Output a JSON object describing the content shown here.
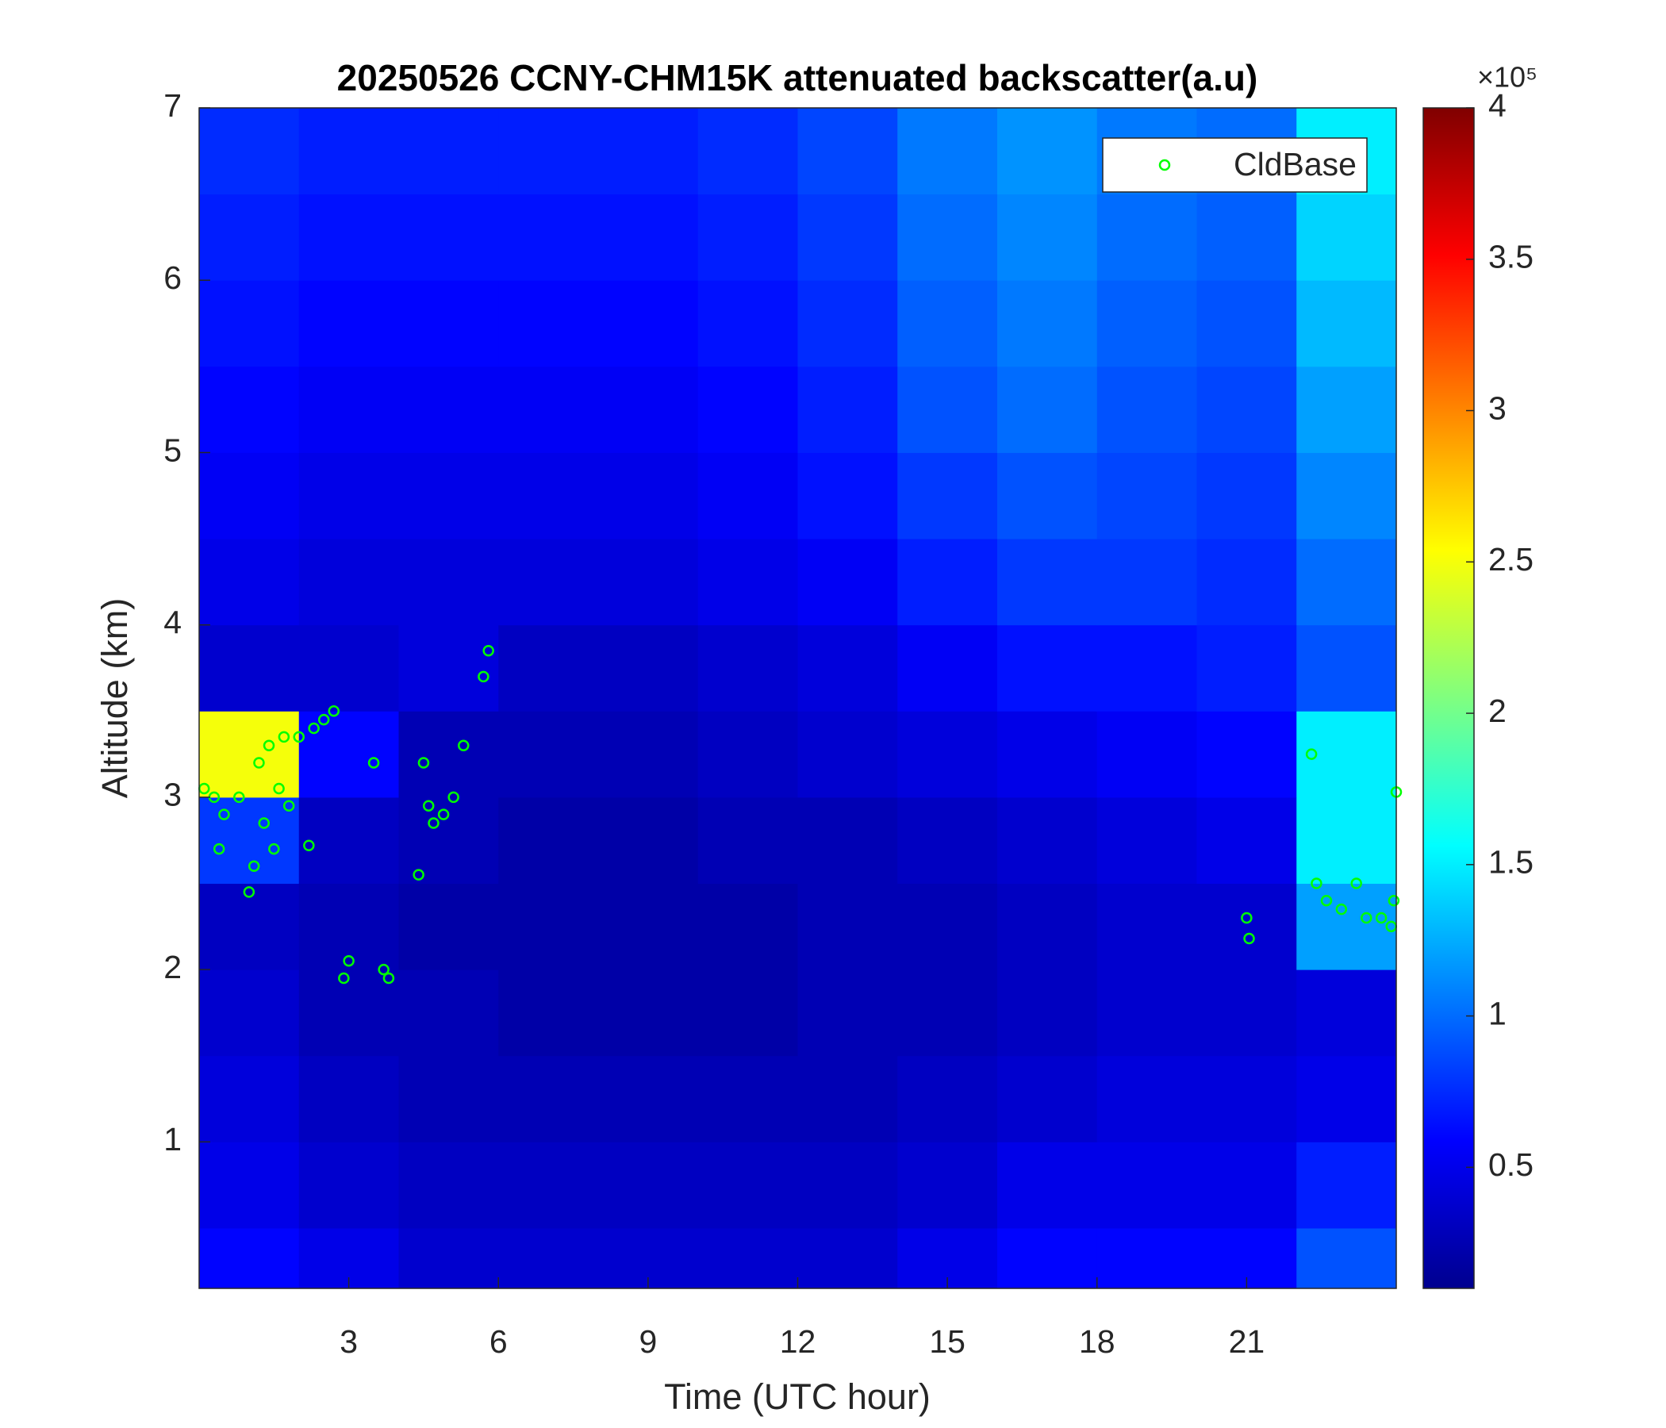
{
  "chart_data": {
    "type": "heatmap",
    "title": "20250526 CCNY-CHM15K attenuated backscatter(a.u)",
    "xlabel": "Time (UTC hour)",
    "ylabel": "Altitude (km)",
    "xlim": [
      0,
      24
    ],
    "ylim": [
      0.15,
      7
    ],
    "xticks": [
      3,
      6,
      9,
      12,
      15,
      18,
      21
    ],
    "yticks": [
      1,
      2,
      3,
      4,
      5,
      6,
      7
    ],
    "xbins": [
      0,
      2,
      4,
      6,
      8,
      10,
      12,
      14,
      16,
      18,
      20,
      22,
      24
    ],
    "ybins": [
      0.15,
      0.5,
      1,
      1.5,
      2,
      2.5,
      3,
      3.5,
      4,
      4.5,
      5,
      5.5,
      6,
      6.5,
      7
    ],
    "z": [
      [
        0.6,
        0.5,
        0.4,
        0.4,
        0.4,
        0.4,
        0.4,
        0.5,
        0.6,
        0.6,
        0.6,
        0.9
      ],
      [
        0.5,
        0.4,
        0.35,
        0.35,
        0.35,
        0.35,
        0.35,
        0.4,
        0.5,
        0.5,
        0.5,
        0.7
      ],
      [
        0.45,
        0.35,
        0.3,
        0.3,
        0.3,
        0.3,
        0.3,
        0.35,
        0.4,
        0.45,
        0.45,
        0.5
      ],
      [
        0.4,
        0.3,
        0.3,
        0.25,
        0.25,
        0.25,
        0.3,
        0.3,
        0.35,
        0.4,
        0.4,
        0.45
      ],
      [
        0.35,
        0.3,
        0.25,
        0.25,
        0.25,
        0.25,
        0.3,
        0.3,
        0.35,
        0.4,
        0.4,
        1.2
      ],
      [
        0.8,
        0.35,
        0.3,
        0.25,
        0.25,
        0.3,
        0.3,
        0.35,
        0.4,
        0.45,
        0.5,
        1.5
      ],
      [
        2.5,
        0.6,
        0.3,
        0.3,
        0.3,
        0.35,
        0.4,
        0.45,
        0.5,
        0.55,
        0.6,
        1.5
      ],
      [
        0.4,
        0.4,
        0.45,
        0.35,
        0.35,
        0.4,
        0.45,
        0.55,
        0.65,
        0.65,
        0.7,
        0.9
      ],
      [
        0.5,
        0.45,
        0.45,
        0.45,
        0.45,
        0.5,
        0.55,
        0.7,
        0.8,
        0.8,
        0.75,
        1.0
      ],
      [
        0.55,
        0.5,
        0.5,
        0.5,
        0.5,
        0.55,
        0.65,
        0.8,
        0.9,
        0.85,
        0.8,
        1.1
      ],
      [
        0.6,
        0.55,
        0.55,
        0.55,
        0.55,
        0.6,
        0.7,
        0.9,
        1.0,
        0.9,
        0.85,
        1.2
      ],
      [
        0.65,
        0.6,
        0.6,
        0.6,
        0.6,
        0.65,
        0.75,
        0.95,
        1.05,
        0.95,
        0.9,
        1.3
      ],
      [
        0.7,
        0.65,
        0.65,
        0.65,
        0.65,
        0.7,
        0.8,
        1.0,
        1.1,
        1.0,
        0.95,
        1.4
      ],
      [
        0.75,
        0.7,
        0.7,
        0.7,
        0.7,
        0.75,
        0.85,
        1.05,
        1.15,
        1.05,
        1.0,
        1.5
      ]
    ],
    "clim": [
      0.1,
      4
    ],
    "cticks": [
      0.5,
      1,
      1.5,
      2,
      2.5,
      3,
      3.5,
      4
    ],
    "colorbar_exponent_label": "×10⁵",
    "colormap": "jet",
    "series": [
      {
        "name": "CldBase",
        "color": "#00ff00",
        "x": [
          0.1,
          0.3,
          0.5,
          0.4,
          0.8,
          1.0,
          1.1,
          1.2,
          1.3,
          1.4,
          1.5,
          1.6,
          1.7,
          1.8,
          2.0,
          2.3,
          2.5,
          2.7,
          2.2,
          2.9,
          3.0,
          3.5,
          3.7,
          3.8,
          4.4,
          4.5,
          4.6,
          4.7,
          4.9,
          5.1,
          5.3,
          5.7,
          5.8,
          21.0,
          21.05,
          22.3,
          22.4,
          22.6,
          22.9,
          23.2,
          23.4,
          23.7,
          23.9,
          24.0,
          23.95
        ],
        "y": [
          3.05,
          3.0,
          2.9,
          2.7,
          3.0,
          2.45,
          2.6,
          3.2,
          2.85,
          3.3,
          2.7,
          3.05,
          3.35,
          2.95,
          3.35,
          3.4,
          3.45,
          3.5,
          2.72,
          1.95,
          2.05,
          3.2,
          2.0,
          1.95,
          2.55,
          3.2,
          2.95,
          2.85,
          2.9,
          3.0,
          3.3,
          3.7,
          3.85,
          2.3,
          2.18,
          3.25,
          2.5,
          2.4,
          2.35,
          2.5,
          2.3,
          2.3,
          2.25,
          3.03,
          2.4
        ]
      }
    ],
    "legend": "upper right"
  }
}
